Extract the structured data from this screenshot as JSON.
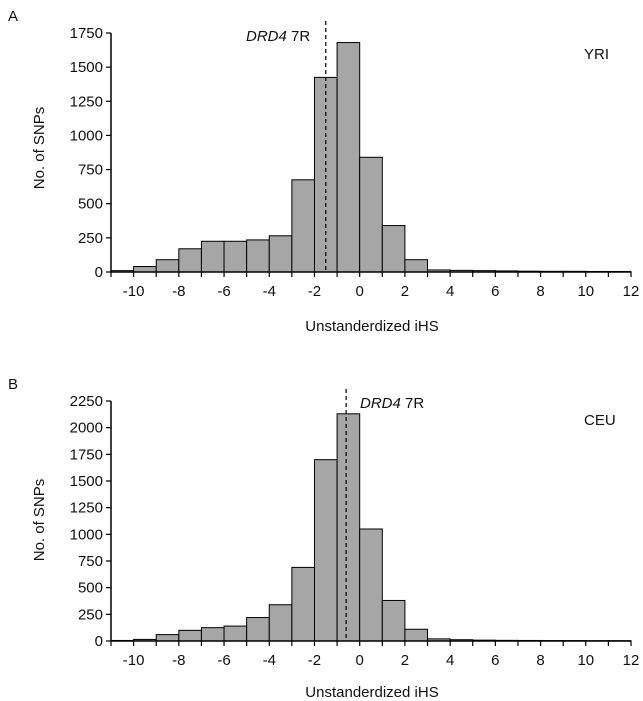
{
  "chart_data": [
    {
      "type": "bar",
      "panel": "A",
      "population": "YRI",
      "xlabel": "Unstanderdized iHS",
      "ylabel": "No. of SNPs",
      "xlim": [
        -11,
        12
      ],
      "ylim": [
        0,
        1750
      ],
      "xticks": [
        -10,
        -8,
        -6,
        -4,
        -2,
        0,
        2,
        4,
        6,
        8,
        10,
        12
      ],
      "yticks": [
        0,
        250,
        500,
        750,
        1000,
        1250,
        1500,
        1750
      ],
      "bar_color": "#a6a6a6",
      "bin_width": 1,
      "bin_starts": [
        -11,
        -10,
        -9,
        -8,
        -7,
        -6,
        -5,
        -4,
        -3,
        -2,
        -1,
        0,
        1,
        2,
        3,
        4,
        5,
        6,
        7,
        8,
        9,
        10,
        11
      ],
      "values": [
        10,
        40,
        90,
        170,
        225,
        225,
        235,
        265,
        675,
        1425,
        1680,
        840,
        340,
        90,
        15,
        12,
        10,
        8,
        6,
        5,
        5,
        4,
        4
      ],
      "marker": {
        "x": -1.5,
        "gene": "DRD4",
        "allele": " 7R"
      }
    },
    {
      "type": "bar",
      "panel": "B",
      "population": "CEU",
      "xlabel": "Unstanderdized iHS",
      "ylabel": "No. of SNPs",
      "xlim": [
        -11,
        12
      ],
      "ylim": [
        0,
        2250
      ],
      "xticks": [
        -10,
        -8,
        -6,
        -4,
        -2,
        0,
        2,
        4,
        6,
        8,
        10,
        12
      ],
      "yticks": [
        0,
        250,
        500,
        750,
        1000,
        1250,
        1500,
        1750,
        2000,
        2250
      ],
      "bar_color": "#a6a6a6",
      "bin_width": 1,
      "bin_starts": [
        -11,
        -10,
        -9,
        -8,
        -7,
        -6,
        -5,
        -4,
        -3,
        -2,
        -1,
        0,
        1,
        2,
        3,
        4,
        5,
        6,
        7,
        8,
        9,
        10,
        11
      ],
      "values": [
        5,
        15,
        60,
        100,
        125,
        140,
        220,
        340,
        690,
        1700,
        2130,
        1050,
        380,
        110,
        20,
        12,
        8,
        6,
        5,
        4,
        4,
        3,
        3
      ],
      "marker": {
        "x": -0.6,
        "gene": "DRD4",
        "allele": " 7R"
      }
    }
  ]
}
